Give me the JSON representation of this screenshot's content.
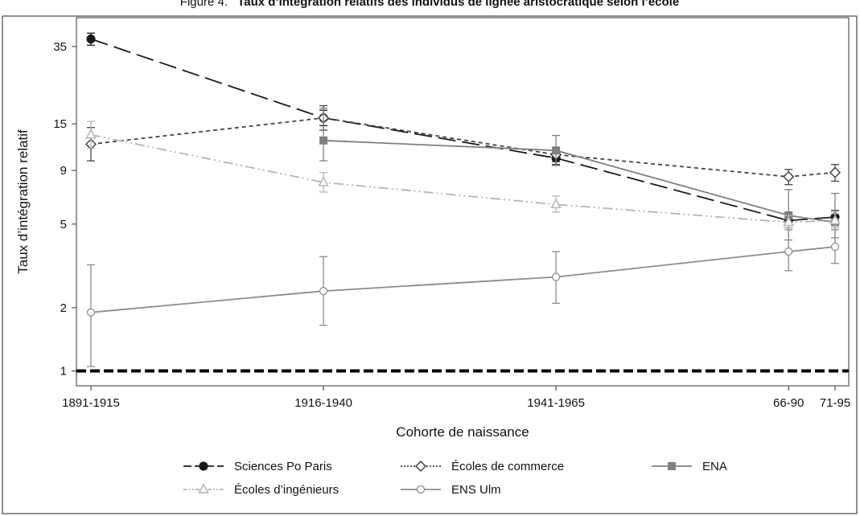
{
  "figure": {
    "label": "Figure 4.",
    "title": "Taux d’intégration relatifs des individus de lignée aristocratique selon l’école"
  },
  "chart_data": {
    "type": "line",
    "xlabel": "Cohorte de naissance",
    "ylabel": "Taux d’intégration relatif",
    "yscale": "log",
    "ylim": [
      0.85,
      48
    ],
    "yticks": [
      1,
      2,
      5,
      9,
      15,
      35
    ],
    "categories": [
      "1891-1915",
      "1916-1940",
      "1941-1965",
      "66-90",
      "71-95"
    ],
    "x_positions": [
      1903,
      1928,
      1953,
      1978,
      1983
    ],
    "reference_line": 1,
    "legend_position": "bottom",
    "series": [
      {
        "name": "Sciences Po Paris",
        "color": "#1a1a1a",
        "dash": "22,8",
        "marker": "circle-filled",
        "values": [
          38,
          16,
          10.3,
          5.2,
          5.4
        ],
        "ci_low": [
          35.5,
          14.7,
          9.6,
          4.8,
          5.0
        ],
        "ci_high": [
          40.5,
          17.4,
          11.0,
          5.6,
          5.8
        ]
      },
      {
        "name": "Écoles de commerce",
        "color": "#444444",
        "dash": "5,4",
        "marker": "diamond-open",
        "values": [
          12,
          16,
          10.7,
          8.4,
          8.8
        ],
        "ci_low": [
          10,
          14,
          9.9,
          7.7,
          8.0
        ],
        "ci_high": [
          14.4,
          18.3,
          11.6,
          9.1,
          9.6
        ]
      },
      {
        "name": "ENA",
        "color": "#808080",
        "dash": "",
        "marker": "square-filled",
        "values": [
          null,
          12.5,
          11.2,
          5.5,
          5.1
        ],
        "ci_low": [
          null,
          10,
          9.5,
          4.2,
          4.3
        ],
        "ci_high": [
          null,
          17.8,
          13.2,
          7.3,
          7.0
        ]
      },
      {
        "name": "Écoles d’ingénieurs",
        "color": "#b4b4b4",
        "dash": "12,4,2,4,2,4",
        "marker": "triangle-open",
        "values": [
          13.3,
          7.9,
          6.2,
          5.1,
          5.2
        ],
        "ci_low": [
          11.5,
          7.1,
          5.7,
          4.8,
          4.8
        ],
        "ci_high": [
          15.4,
          8.8,
          6.8,
          5.5,
          5.6
        ]
      },
      {
        "name": "ENS Ulm",
        "color": "#8c8c8c",
        "dash": "",
        "marker": "circle-open",
        "values": [
          1.9,
          2.4,
          2.8,
          3.7,
          3.9
        ],
        "ci_low": [
          1.05,
          1.65,
          2.1,
          3.0,
          3.25
        ],
        "ci_high": [
          3.2,
          3.5,
          3.7,
          4.7,
          4.7
        ]
      }
    ]
  }
}
